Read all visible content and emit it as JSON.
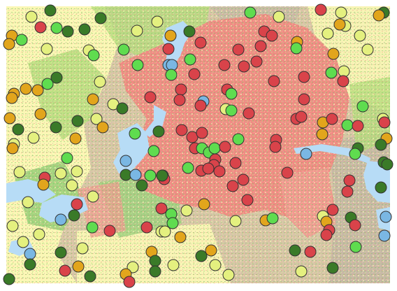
{
  "map": {
    "land_cover_colors": {
      "developed": "#f08c84",
      "cultivated": "#fbf7b5",
      "grassland": "#b5dc7c",
      "forest": "#6fbf5a",
      "barren": "#c8b9a6",
      "water": "#b7dcf6"
    },
    "marker_classes": [
      {
        "class": "red",
        "color": "#d9434a"
      },
      {
        "class": "light-green",
        "color": "#5fdc4f"
      },
      {
        "class": "dark-green",
        "color": "#3a7a28"
      },
      {
        "class": "yellow",
        "color": "#e4f07f"
      },
      {
        "class": "orange",
        "color": "#e2a51c"
      },
      {
        "class": "blue",
        "color": "#7ab7e3"
      }
    ]
  }
}
